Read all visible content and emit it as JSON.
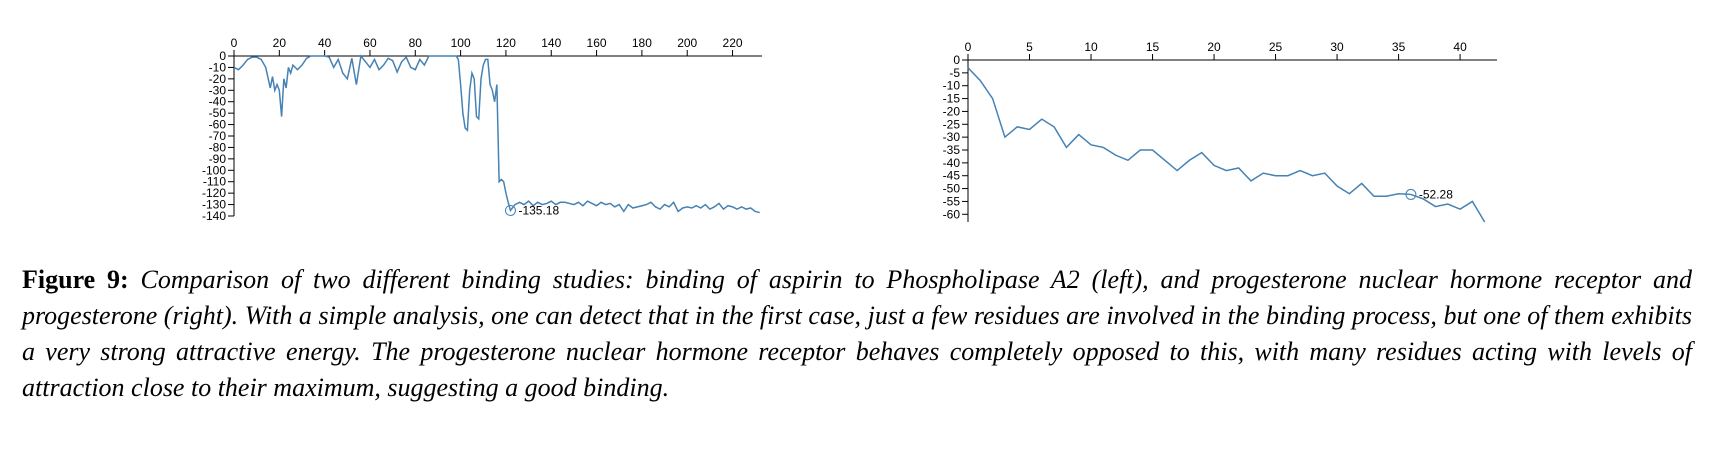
{
  "chart_data": [
    {
      "type": "line",
      "color": "#4682b4",
      "x": [
        0,
        2,
        4,
        6,
        8,
        10,
        12,
        14,
        16,
        17,
        18,
        19,
        20,
        21,
        22,
        23,
        24,
        25,
        26,
        28,
        30,
        32,
        34,
        38,
        40,
        42,
        44,
        46,
        48,
        50,
        52,
        54,
        56,
        58,
        60,
        62,
        64,
        66,
        68,
        70,
        72,
        74,
        76,
        78,
        80,
        82,
        84,
        86,
        90,
        95,
        98,
        99,
        100,
        101,
        102,
        103,
        104,
        105,
        106,
        107,
        108,
        109,
        110,
        111,
        112,
        113,
        114,
        115,
        116,
        117,
        118,
        119,
        120,
        121,
        122,
        124,
        126,
        128,
        130,
        132,
        134,
        136,
        138,
        140,
        142,
        144,
        146,
        148,
        150,
        152,
        154,
        156,
        158,
        160,
        162,
        164,
        166,
        168,
        170,
        172,
        174,
        176,
        178,
        180,
        182,
        184,
        186,
        188,
        190,
        192,
        194,
        196,
        198,
        200,
        202,
        204,
        206,
        208,
        210,
        212,
        214,
        216,
        218,
        220,
        222,
        224,
        226,
        228,
        230,
        232
      ],
      "values": [
        -10,
        -12,
        -8,
        -3,
        -1,
        -1,
        -3,
        -10,
        -28,
        -18,
        -30,
        -25,
        -30,
        -53,
        -20,
        -28,
        -10,
        -15,
        -8,
        -12,
        -8,
        -2,
        0,
        0,
        0,
        -1,
        -10,
        -3,
        -15,
        -20,
        -2,
        -25,
        0,
        -5,
        -10,
        -3,
        -12,
        -8,
        -2,
        -4,
        -14,
        -5,
        -1,
        -10,
        -12,
        -3,
        -8,
        0,
        0,
        0,
        0,
        -3,
        -25,
        -50,
        -63,
        -65,
        -30,
        -15,
        -20,
        -53,
        -55,
        -20,
        -8,
        -3,
        -3,
        -25,
        -30,
        -40,
        -25,
        -110,
        -108,
        -110,
        -120,
        -128,
        -135.18,
        -130,
        -128,
        -130,
        -127,
        -131,
        -128,
        -130,
        -129,
        -127,
        -130,
        -128,
        -128,
        -129,
        -130,
        -128,
        -131,
        -127,
        -129,
        -131,
        -128,
        -130,
        -129,
        -132,
        -130,
        -136,
        -130,
        -133,
        -132,
        -131,
        -130,
        -128,
        -132,
        -134,
        -130,
        -132,
        -128,
        -136,
        -133,
        -132,
        -133,
        -131,
        -133,
        -130,
        -134,
        -132,
        -129,
        -134,
        -131,
        -132,
        -134,
        -132,
        -134,
        -133,
        -136,
        -137
      ],
      "xlim": [
        0,
        233
      ],
      "ylim": [
        -140,
        0
      ],
      "xticks": [
        0,
        20,
        40,
        60,
        80,
        100,
        120,
        140,
        160,
        180,
        200,
        220
      ],
      "yticks": [
        0,
        -10,
        -20,
        -30,
        -40,
        -50,
        -60,
        -70,
        -80,
        -90,
        -100,
        -110,
        -120,
        -130,
        -140
      ],
      "annotation": {
        "x": 122,
        "value": -135.18
      }
    },
    {
      "type": "line",
      "color": "#4682b4",
      "x": [
        0,
        1,
        2,
        3,
        4,
        5,
        6,
        7,
        8,
        9,
        10,
        11,
        12,
        13,
        14,
        15,
        16,
        17,
        18,
        19,
        20,
        21,
        22,
        23,
        24,
        25,
        26,
        27,
        28,
        29,
        30,
        31,
        32,
        33,
        34,
        35,
        36,
        37,
        38,
        39,
        40,
        41,
        42
      ],
      "values": [
        -3,
        -8,
        -15,
        -30,
        -26,
        -27,
        -23,
        -26,
        -34,
        -29,
        -33,
        -34,
        -37,
        -39,
        -35,
        -35,
        -39,
        -43,
        -39,
        -36,
        -41,
        -43,
        -42,
        -47,
        -44,
        -45,
        -45,
        -43,
        -45,
        -44,
        -49,
        -52,
        -48,
        -53,
        -53,
        -52,
        -52.28,
        -54,
        -57,
        -56,
        -58,
        -55,
        -63
      ],
      "xlim": [
        0,
        43
      ],
      "ylim": [
        -63,
        0
      ],
      "xticks": [
        0,
        5,
        10,
        15,
        20,
        25,
        30,
        35,
        40
      ],
      "yticks": [
        0,
        -5,
        -10,
        -15,
        -20,
        -25,
        -30,
        -35,
        -40,
        -45,
        -50,
        -55,
        -60
      ],
      "annotation": {
        "x": 36,
        "value": -52.28
      }
    }
  ],
  "caption": {
    "label": "Figure 9:",
    "text": "Comparison of two different binding studies: binding of aspirin to Phospholipase A2 (left), and progesterone nuclear hormone receptor and progesterone (right). With a simple analysis, one can detect that in the first case, just a few residues are involved in the binding process, but one of them exhibits a very strong attractive energy. The progesterone nuclear hormone receptor behaves completely opposed to this, with many residues acting with levels of attraction close to their maximum, suggesting a good binding."
  }
}
